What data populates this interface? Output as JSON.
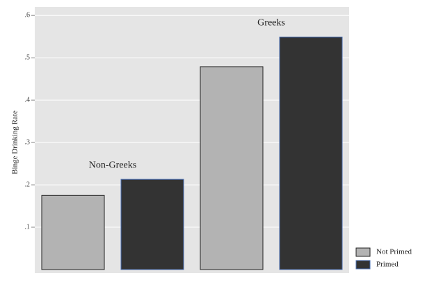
{
  "chart_data": {
    "type": "bar",
    "y_label": "Binge Drinking Rate",
    "categories": [
      "Non-Greeks",
      "Greeks"
    ],
    "series": [
      {
        "name": "Not Primed",
        "color": "#b3b3b3",
        "edgecolor": "#222222",
        "values": [
          0.175,
          0.479
        ]
      },
      {
        "name": "Primed",
        "color": "#333333",
        "edgecolor": "#4a6fb5",
        "values": [
          0.213,
          0.549
        ]
      }
    ],
    "ylim": [
      0,
      0.62
    ],
    "yticks": [
      {
        "value": 0.1,
        "label": ".1"
      },
      {
        "value": 0.2,
        "label": ".2"
      },
      {
        "value": 0.3,
        "label": ".3"
      },
      {
        "value": 0.4,
        "label": ".4"
      },
      {
        "value": 0.5,
        "label": ".5"
      },
      {
        "value": 0.6,
        "label": ".6"
      }
    ],
    "grid": true,
    "legend": "bottom-right"
  }
}
